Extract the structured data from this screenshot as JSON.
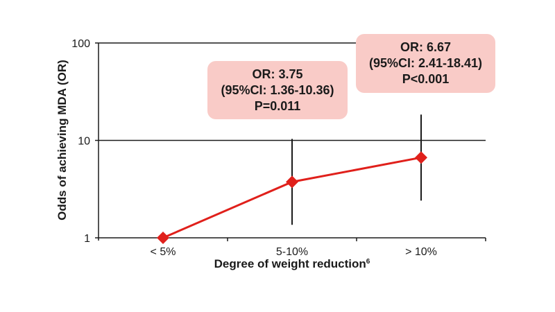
{
  "chart_data": {
    "type": "line",
    "title": "",
    "xlabel": "Degree of weight reduction",
    "xlabel_superscript": "6",
    "ylabel": "Odds of achieving MDA (OR)",
    "yscale": "log",
    "ylim": [
      1,
      100
    ],
    "yticks": [
      "1",
      "10",
      "100"
    ],
    "ytick_values": [
      1,
      10,
      100
    ],
    "grid": "horizontal at major ticks",
    "categories": [
      "< 5%",
      "5-10%",
      "> 10%"
    ],
    "series": [
      {
        "name": "Odds ratio",
        "color": "#e0201b",
        "marker": "diamond",
        "values": [
          1.0,
          3.75,
          6.67
        ],
        "ci_lower": [
          null,
          1.36,
          2.41
        ],
        "ci_upper": [
          null,
          10.36,
          18.41
        ]
      }
    ],
    "annotations": [
      {
        "category": "5-10%",
        "lines": [
          "OR: 3.75",
          "(95%CI: 1.36-10.36)",
          "P=0.011"
        ]
      },
      {
        "category": "> 10%",
        "lines": [
          "OR: 6.67",
          "(95%CI: 2.41-18.41)",
          "P<0.001"
        ]
      }
    ],
    "colors": {
      "line": "#e0201b",
      "annotation_bg": "#f9cbc7",
      "axis": "#1a1a1a"
    }
  }
}
